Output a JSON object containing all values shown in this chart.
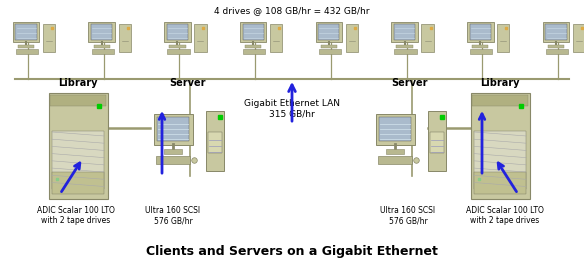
{
  "title": "Clients and Servers on a Gigabit Ethernet",
  "top_label": "4 drives @ 108 GB/hr = 432 GB/hr",
  "center_label": "Gigabit Ethernet LAN\n315 GB/hr",
  "left_library_label": "Library",
  "left_server_label": "Server",
  "right_library_label": "Library",
  "right_server_label": "Server",
  "left_scsi_label": "Ultra 160 SCSI\n576 GB/hr",
  "right_scsi_label": "Ultra 160 SCSI\n576 GB/hr",
  "left_adic_label": "ADIC Scalar 100 LTO\nwith 2 tape drives",
  "right_adic_label": "ADIC Scalar 100 LTO\nwith 2 tape drives",
  "bg_color": "#ffffff",
  "arrow_color": "#2222dd",
  "line_color": "#9a9a70",
  "text_color": "#000000",
  "num_clients": 8,
  "label_fontsize": 6,
  "title_fontsize": 9,
  "tower_color": "#c8c8a0",
  "tower_edge": "#888868",
  "screen_color": "#aabbcc",
  "keyboard_color": "#b8b890"
}
